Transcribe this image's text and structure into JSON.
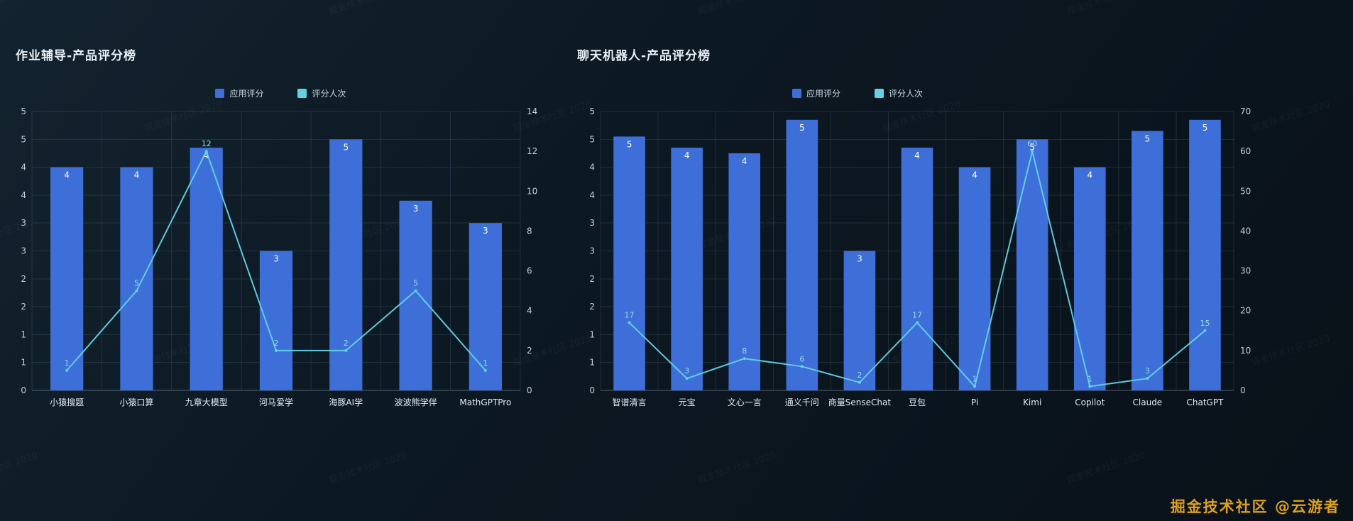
{
  "page": {
    "footer_credit": "掘金技术社区 @云游者",
    "watermark_text": "掘金技术社区 2020",
    "colors": {
      "background_top": "#13232f",
      "background_bottom": "#091119",
      "bar": "#3e6fd9",
      "line": "#63d2e5",
      "gold": "#dfa119"
    }
  },
  "chart_data": [
    {
      "type": "bar",
      "title": "作业辅导-产品评分榜",
      "legend_position": "top-center",
      "grid": true,
      "categories": [
        "小猿搜题",
        "小猿口算",
        "九章大模型",
        "河马爱学",
        "海豚AI学",
        "波波熊学伴",
        "MathGPTPro"
      ],
      "series": [
        {
          "name": "应用评分",
          "kind": "bar",
          "axis": "left",
          "values": [
            4.0,
            4.0,
            4.35,
            2.5,
            4.5,
            3.4,
            3.0
          ],
          "labels": [
            "4",
            "4",
            "4",
            "3",
            "5",
            "3",
            "3"
          ]
        },
        {
          "name": "评分人次",
          "kind": "line",
          "axis": "right",
          "values": [
            1,
            5,
            12,
            2,
            2,
            5,
            1
          ],
          "labels": [
            "1",
            "5",
            "12",
            "2",
            "2",
            "5",
            "1"
          ]
        }
      ],
      "left_axis": {
        "min": 0,
        "max": 5,
        "tick_labels": [
          "0",
          "1",
          "1",
          "2",
          "2",
          "3",
          "3",
          "4",
          "4",
          "5",
          "5"
        ]
      },
      "right_axis": {
        "min": 0,
        "max": 14,
        "tick_labels": [
          "0",
          "2",
          "4",
          "6",
          "8",
          "10",
          "12",
          "14"
        ]
      }
    },
    {
      "type": "bar",
      "title": "聊天机器人-产品评分榜",
      "legend_position": "top-center",
      "grid": true,
      "categories": [
        "智谱清言",
        "元宝",
        "文心一言",
        "通义千问",
        "商量SenseChat",
        "豆包",
        "Pi",
        "Kimi",
        "Copilot",
        "Claude",
        "ChatGPT"
      ],
      "series": [
        {
          "name": "应用评分",
          "kind": "bar",
          "axis": "left",
          "values": [
            4.55,
            4.35,
            4.25,
            4.85,
            2.5,
            4.35,
            4.0,
            4.5,
            4.0,
            4.65,
            4.85
          ],
          "labels": [
            "5",
            "4",
            "4",
            "5",
            "3",
            "4",
            "4",
            "5",
            "4",
            "5",
            "5"
          ]
        },
        {
          "name": "评分人次",
          "kind": "line",
          "axis": "right",
          "values": [
            17,
            3,
            8,
            6,
            2,
            17,
            1,
            60,
            1,
            3,
            15
          ],
          "labels": [
            "17",
            "3",
            "8",
            "6",
            "2",
            "17",
            "1",
            "60",
            "1",
            "3",
            "15"
          ]
        }
      ],
      "left_axis": {
        "min": 0,
        "max": 5,
        "tick_labels": [
          "0",
          "1",
          "1",
          "2",
          "2",
          "3",
          "3",
          "4",
          "4",
          "5",
          "5"
        ]
      },
      "right_axis": {
        "min": 0,
        "max": 70,
        "tick_labels": [
          "0",
          "10",
          "20",
          "30",
          "40",
          "50",
          "60",
          "70"
        ]
      }
    }
  ]
}
